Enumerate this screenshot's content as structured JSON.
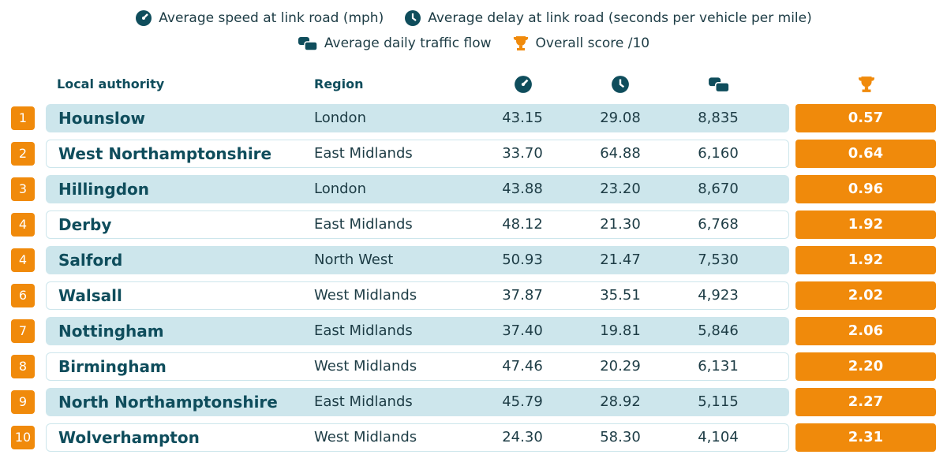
{
  "legend": [
    "Average speed at link road (mph)",
    "Average delay at link road (seconds per vehicle per mile)",
    "Average daily traffic flow",
    "Overall score /10"
  ],
  "header": {
    "local_authority": "Local authority",
    "region": "Region"
  },
  "rows": [
    {
      "rank": "1",
      "authority": "Hounslow",
      "region": "London",
      "speed": "43.15",
      "delay": "29.08",
      "flow": "8,835",
      "score": "0.57"
    },
    {
      "rank": "2",
      "authority": "West Northamptonshire",
      "region": "East Midlands",
      "speed": "33.70",
      "delay": "64.88",
      "flow": "6,160",
      "score": "0.64"
    },
    {
      "rank": "3",
      "authority": "Hillingdon",
      "region": "London",
      "speed": "43.88",
      "delay": "23.20",
      "flow": "8,670",
      "score": "0.96"
    },
    {
      "rank": "4",
      "authority": "Derby",
      "region": "East Midlands",
      "speed": "48.12",
      "delay": "21.30",
      "flow": "6,768",
      "score": "1.92"
    },
    {
      "rank": "4",
      "authority": "Salford",
      "region": "North West",
      "speed": "50.93",
      "delay": "21.47",
      "flow": "7,530",
      "score": "1.92"
    },
    {
      "rank": "6",
      "authority": "Walsall",
      "region": "West Midlands",
      "speed": "37.87",
      "delay": "35.51",
      "flow": "4,923",
      "score": "2.02"
    },
    {
      "rank": "7",
      "authority": "Nottingham",
      "region": "East Midlands",
      "speed": "37.40",
      "delay": "19.81",
      "flow": "5,846",
      "score": "2.06"
    },
    {
      "rank": "8",
      "authority": "Birmingham",
      "region": "West Midlands",
      "speed": "47.46",
      "delay": "20.29",
      "flow": "6,131",
      "score": "2.20"
    },
    {
      "rank": "9",
      "authority": "North Northamptonshire",
      "region": "East Midlands",
      "speed": "45.79",
      "delay": "28.92",
      "flow": "5,115",
      "score": "2.27"
    },
    {
      "rank": "10",
      "authority": "Wolverhampton",
      "region": "West Midlands",
      "speed": "24.30",
      "delay": "58.30",
      "flow": "4,104",
      "score": "2.31"
    }
  ]
}
